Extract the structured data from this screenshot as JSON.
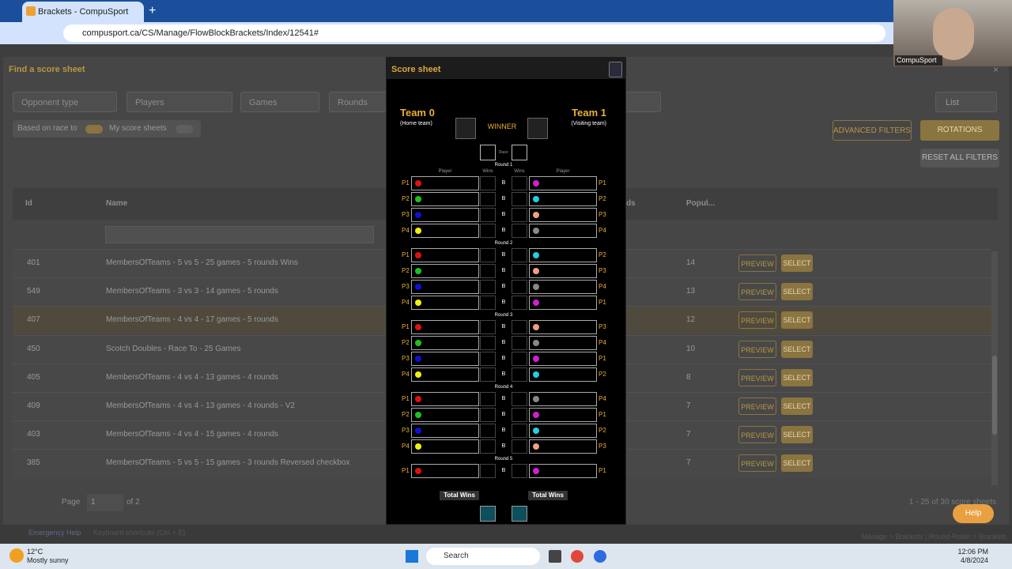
{
  "browser": {
    "tab_title": "Brackets - CompuSport",
    "url": "compusport.ca/CS/Manage/FlowBlockBrackets/Index/12541#"
  },
  "webcam": {
    "label": "CompuSport"
  },
  "page": {
    "title": "Find a score sheet",
    "filters": [
      "Opponent type",
      "Players",
      "Games",
      "Rounds"
    ],
    "view": "List",
    "toggles": [
      "Based on race to",
      "My score sheets"
    ],
    "buttons": {
      "advanced": "ADVANCED FILTERS",
      "rotations": "ROTATIONS",
      "reset": "RESET ALL FILTERS"
    },
    "table": {
      "headers": [
        "Id",
        "Name",
        "ds",
        "Popul..."
      ],
      "rows": [
        [
          "401",
          "MembersOfTeams - 5 vs 5 - 25 games - 5 rounds Wins",
          "14"
        ],
        [
          "549",
          "MembersOfTeams - 3 vs 3 - 14 games - 5 rounds",
          "13"
        ],
        [
          "407",
          "MembersOfTeams - 4 vs 4 - 17 games - 5 rounds",
          "12"
        ],
        [
          "450",
          "Scotch Doubles - Race To - 25 Games",
          "10"
        ],
        [
          "405",
          "MembersOfTeams - 4 vs 4 - 13 games - 4 rounds",
          "8"
        ],
        [
          "409",
          "MembersOfTeams - 4 vs 4 - 13 games - 4 rounds - V2",
          "7"
        ],
        [
          "403",
          "MembersOfTeams - 4 vs 4 - 15 games - 4 rounds",
          "7"
        ],
        [
          "385",
          "MembersOfTeams - 5 vs 5 - 15 games - 3 rounds Reversed checkbox",
          "7"
        ]
      ],
      "preview": "PREVIEW",
      "select": "SELECT"
    },
    "pagination": {
      "page_label": "Page",
      "page": "1",
      "of": "of 2",
      "summary": "1 - 25 of 30 score sheets"
    },
    "help": "Help",
    "footer": {
      "emergency": "Emergency Help",
      "shortcuts": "Keyboard shortcuts (Ctrl + E)",
      "breadcrumb": "Manage > Brackets | Round-Robin > Brackets"
    }
  },
  "modal": {
    "title": "Score sheet",
    "home": {
      "name": "Team 0",
      "role": "(Home team)"
    },
    "visiting": {
      "name": "Team 1",
      "role": "(Visiting team)"
    },
    "winner": "WINNER",
    "race": "Race",
    "headers": [
      "Player",
      "Wins",
      "Wins",
      "Player"
    ],
    "rounds": [
      {
        "label": "Round 1",
        "rows": [
          {
            "left": "P1",
            "left_color": "#e01010",
            "break": "B",
            "right": "P1",
            "right_color": "#d020d0"
          },
          {
            "left": "P2",
            "left_color": "#20c020",
            "break": "B",
            "right": "P2",
            "right_color": "#20d0e0"
          },
          {
            "left": "P3",
            "left_color": "#1010d0",
            "break": "B",
            "right": "P3",
            "right_color": "#f0a080"
          },
          {
            "left": "P4",
            "left_color": "#f0f010",
            "break": "B",
            "right": "P4",
            "right_color": "#888888"
          }
        ]
      },
      {
        "label": "Round 2",
        "rows": [
          {
            "left": "P1",
            "left_color": "#e01010",
            "break": "B",
            "right": "P2",
            "right_color": "#20d0e0"
          },
          {
            "left": "P2",
            "left_color": "#20c020",
            "break": "B",
            "right": "P3",
            "right_color": "#f0a080"
          },
          {
            "left": "P3",
            "left_color": "#1010d0",
            "break": "B",
            "right": "P4",
            "right_color": "#888888"
          },
          {
            "left": "P4",
            "left_color": "#f0f010",
            "break": "B",
            "right": "P1",
            "right_color": "#d020d0"
          }
        ]
      },
      {
        "label": "Round 3",
        "rows": [
          {
            "left": "P1",
            "left_color": "#e01010",
            "break": "B",
            "right": "P3",
            "right_color": "#f0a080"
          },
          {
            "left": "P2",
            "left_color": "#20c020",
            "break": "B",
            "right": "P4",
            "right_color": "#888888"
          },
          {
            "left": "P3",
            "left_color": "#1010d0",
            "break": "B",
            "right": "P1",
            "right_color": "#d020d0"
          },
          {
            "left": "P4",
            "left_color": "#f0f010",
            "break": "B",
            "right": "P2",
            "right_color": "#20d0e0"
          }
        ]
      },
      {
        "label": "Round 4",
        "rows": [
          {
            "left": "P1",
            "left_color": "#e01010",
            "break": "B",
            "right": "P4",
            "right_color": "#888888"
          },
          {
            "left": "P2",
            "left_color": "#20c020",
            "break": "B",
            "right": "P1",
            "right_color": "#d020d0"
          },
          {
            "left": "P3",
            "left_color": "#1010d0",
            "break": "B",
            "right": "P2",
            "right_color": "#20d0e0"
          },
          {
            "left": "P4",
            "left_color": "#f0f010",
            "break": "B",
            "right": "P3",
            "right_color": "#f0a080"
          }
        ]
      },
      {
        "label": "Round 5",
        "rows": [
          {
            "left": "P1",
            "left_color": "#e01010",
            "break": "B",
            "right": "P1",
            "right_color": "#d020d0"
          }
        ]
      }
    ],
    "total_wins": [
      "Total Wins",
      "Total Wins"
    ]
  },
  "taskbar": {
    "temp": "12°C",
    "weather": "Mostly sunny",
    "search": "Search",
    "time": "12:06 PM",
    "date": "4/8/2024"
  }
}
